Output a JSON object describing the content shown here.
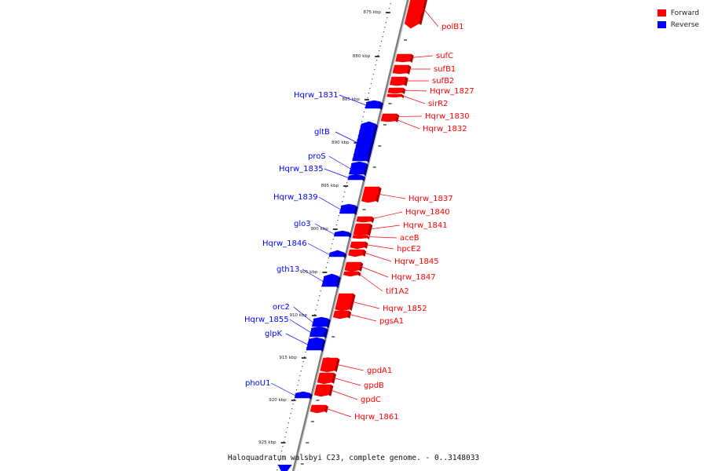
{
  "title": "Haloquadratum walsbyi C23, complete genome. - 0..3148033",
  "legend": [
    {
      "label": "Forward",
      "color": "#ff0000"
    },
    {
      "label": "Reverse",
      "color": "#0000ff"
    }
  ],
  "colors": {
    "forward": "#ff0000",
    "reverse": "#0000ff",
    "axis": "#888888"
  },
  "ticks": [
    "875 kbp",
    "880 kbp",
    "885 kbp",
    "890 kbp",
    "895 kbp",
    "900 kbp",
    "905 kbp",
    "910 kbp",
    "915 kbp",
    "920 kbp",
    "925 kbp"
  ],
  "genes": [
    {
      "name": "polB1",
      "strand": "forward"
    },
    {
      "name": "sufC",
      "strand": "forward"
    },
    {
      "name": "sufB1",
      "strand": "forward"
    },
    {
      "name": "sufB2",
      "strand": "forward"
    },
    {
      "name": "Hqrw_1827",
      "strand": "forward"
    },
    {
      "name": "sirR2",
      "strand": "forward"
    },
    {
      "name": "Hqrw_1830",
      "strand": "forward"
    },
    {
      "name": "Hqrw_1832",
      "strand": "forward"
    },
    {
      "name": "Hqrw_1831",
      "strand": "reverse"
    },
    {
      "name": "gltB",
      "strand": "reverse"
    },
    {
      "name": "proS",
      "strand": "reverse"
    },
    {
      "name": "Hqrw_1835",
      "strand": "reverse"
    },
    {
      "name": "Hqrw_1837",
      "strand": "forward"
    },
    {
      "name": "Hqrw_1839",
      "strand": "reverse"
    },
    {
      "name": "Hqrw_1840",
      "strand": "forward"
    },
    {
      "name": "Hqrw_1841",
      "strand": "forward"
    },
    {
      "name": "glo3",
      "strand": "reverse"
    },
    {
      "name": "aceB",
      "strand": "forward"
    },
    {
      "name": "hpcE2",
      "strand": "forward"
    },
    {
      "name": "Hqrw_1846",
      "strand": "reverse"
    },
    {
      "name": "Hqrw_1845",
      "strand": "forward"
    },
    {
      "name": "gth13",
      "strand": "reverse"
    },
    {
      "name": "Hqrw_1847",
      "strand": "forward"
    },
    {
      "name": "tif1A2",
      "strand": "forward"
    },
    {
      "name": "Hqrw_1852",
      "strand": "forward"
    },
    {
      "name": "orc2",
      "strand": "reverse"
    },
    {
      "name": "pgsA1",
      "strand": "forward"
    },
    {
      "name": "Hqrw_1855",
      "strand": "reverse"
    },
    {
      "name": "glpK",
      "strand": "reverse"
    },
    {
      "name": "gpdA1",
      "strand": "forward"
    },
    {
      "name": "gpdB",
      "strand": "forward"
    },
    {
      "name": "phoU1",
      "strand": "reverse"
    },
    {
      "name": "gpdC",
      "strand": "forward"
    },
    {
      "name": "Hqrw_1861",
      "strand": "forward"
    }
  ]
}
